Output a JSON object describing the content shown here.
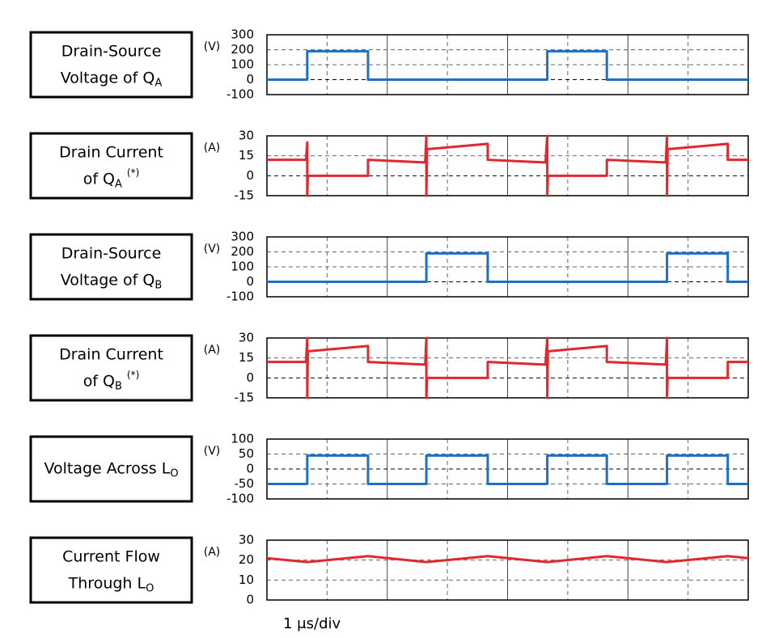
{
  "chart_data": [
    {
      "type": "line",
      "label_lines": [
        {
          "text": "Drain-Source"
        },
        {
          "text": "Voltage of Q",
          "sub": "A"
        }
      ],
      "unit": "(V)",
      "x": [
        0,
        0.67,
        0.67,
        1.68,
        1.68,
        4.66,
        4.66,
        5.65,
        5.65,
        8
      ],
      "xlim": [
        0,
        8
      ],
      "xticks": [
        0,
        1,
        2,
        3,
        4,
        5,
        6,
        7,
        8
      ],
      "ylim": [
        -100,
        300
      ],
      "yticks": [
        -100,
        0,
        100,
        200,
        300
      ],
      "grid": true,
      "series": [
        {
          "color": "#1f6fc5",
          "values": [
            0,
            0,
            190,
            190,
            0,
            0,
            190,
            190,
            0,
            0
          ]
        }
      ]
    },
    {
      "type": "line",
      "label_lines": [
        {
          "text": "Drain Current"
        },
        {
          "text": "of Q",
          "sub": "A",
          "sup": "(*)"
        }
      ],
      "unit": "(A)",
      "x": [
        0,
        0.65,
        0.67,
        0.67,
        0.68,
        1.68,
        1.68,
        2.63,
        2.65,
        2.65,
        2.66,
        3.67,
        3.67,
        4.63,
        4.66,
        4.66,
        4.67,
        5.65,
        5.65,
        6.63,
        6.65,
        6.65,
        6.66,
        7.66,
        7.66,
        8
      ],
      "xlim": [
        0,
        8
      ],
      "xticks": [
        0,
        1,
        2,
        3,
        4,
        5,
        6,
        7,
        8
      ],
      "ylim": [
        -15,
        30
      ],
      "yticks": [
        -15,
        0,
        15,
        30
      ],
      "grid": true,
      "series": [
        {
          "color": "#e0282e",
          "values": [
            12,
            12,
            25,
            -15,
            0,
            0,
            12,
            10,
            30,
            -15,
            20,
            24,
            12,
            10,
            30,
            -15,
            0,
            0,
            12,
            10,
            30,
            -15,
            20,
            24,
            12,
            12
          ]
        }
      ]
    },
    {
      "type": "line",
      "label_lines": [
        {
          "text": "Drain-Source"
        },
        {
          "text": "Voltage of Q",
          "sub": "B"
        }
      ],
      "unit": "(V)",
      "x": [
        0,
        2.65,
        2.65,
        3.67,
        3.67,
        6.65,
        6.65,
        7.66,
        7.66,
        8
      ],
      "xlim": [
        0,
        8
      ],
      "xticks": [
        0,
        1,
        2,
        3,
        4,
        5,
        6,
        7,
        8
      ],
      "ylim": [
        -100,
        300
      ],
      "yticks": [
        -100,
        0,
        100,
        200,
        300
      ],
      "grid": true,
      "series": [
        {
          "color": "#1f6fc5",
          "values": [
            0,
            0,
            190,
            190,
            0,
            0,
            190,
            190,
            0,
            0
          ]
        }
      ]
    },
    {
      "type": "line",
      "label_lines": [
        {
          "text": "Drain Current"
        },
        {
          "text": "of Q",
          "sub": "B",
          "sup": "(*)"
        }
      ],
      "unit": "(A)",
      "x": [
        0,
        0.65,
        0.67,
        0.67,
        0.68,
        1.68,
        1.68,
        2.63,
        2.65,
        2.65,
        2.66,
        3.67,
        3.67,
        4.63,
        4.66,
        4.66,
        4.67,
        5.65,
        5.65,
        6.63,
        6.65,
        6.65,
        6.66,
        7.66,
        7.66,
        8
      ],
      "xlim": [
        0,
        8
      ],
      "xticks": [
        0,
        1,
        2,
        3,
        4,
        5,
        6,
        7,
        8
      ],
      "ylim": [
        -15,
        30
      ],
      "yticks": [
        -15,
        0,
        15,
        30
      ],
      "grid": true,
      "series": [
        {
          "color": "#e0282e",
          "values": [
            12,
            12,
            30,
            -15,
            20,
            24,
            12,
            10,
            30,
            -15,
            0,
            0,
            12,
            10,
            30,
            -15,
            20,
            24,
            12,
            10,
            30,
            -15,
            0,
            0,
            12,
            12
          ]
        }
      ]
    },
    {
      "type": "line",
      "label_lines": [
        {
          "text": "Voltage Across L",
          "sub": "O"
        }
      ],
      "unit": "(V)",
      "x": [
        0,
        0.67,
        0.67,
        1.68,
        1.68,
        2.65,
        2.65,
        3.67,
        3.67,
        4.66,
        4.66,
        5.65,
        5.65,
        6.65,
        6.65,
        7.66,
        7.66,
        8
      ],
      "xlim": [
        0,
        8
      ],
      "xticks": [
        0,
        1,
        2,
        3,
        4,
        5,
        6,
        7,
        8
      ],
      "ylim": [
        -100,
        100
      ],
      "yticks": [
        -100,
        -50,
        0,
        50,
        100
      ],
      "grid": true,
      "series": [
        {
          "color": "#1f6fc5",
          "values": [
            -50,
            -50,
            45,
            45,
            -50,
            -50,
            45,
            45,
            -50,
            -50,
            45,
            45,
            -50,
            -50,
            45,
            45,
            -50,
            -50
          ]
        }
      ]
    },
    {
      "type": "line",
      "label_lines": [
        {
          "text": "Current Flow"
        },
        {
          "text": "Through L",
          "sub": "O"
        }
      ],
      "unit": "(A)",
      "x": [
        0,
        0.67,
        1.68,
        2.65,
        3.67,
        4.66,
        5.65,
        6.65,
        7.66,
        8
      ],
      "xlim": [
        0,
        8
      ],
      "xticks": [
        0,
        1,
        2,
        3,
        4,
        5,
        6,
        7,
        8
      ],
      "ylim": [
        0,
        30
      ],
      "yticks": [
        0,
        10,
        20,
        30
      ],
      "grid": true,
      "series": [
        {
          "color": "#e0282e",
          "values": [
            21,
            19,
            22,
            19,
            22,
            19,
            22,
            19,
            22,
            21
          ]
        }
      ]
    }
  ],
  "time_scale": "1 μs/div"
}
